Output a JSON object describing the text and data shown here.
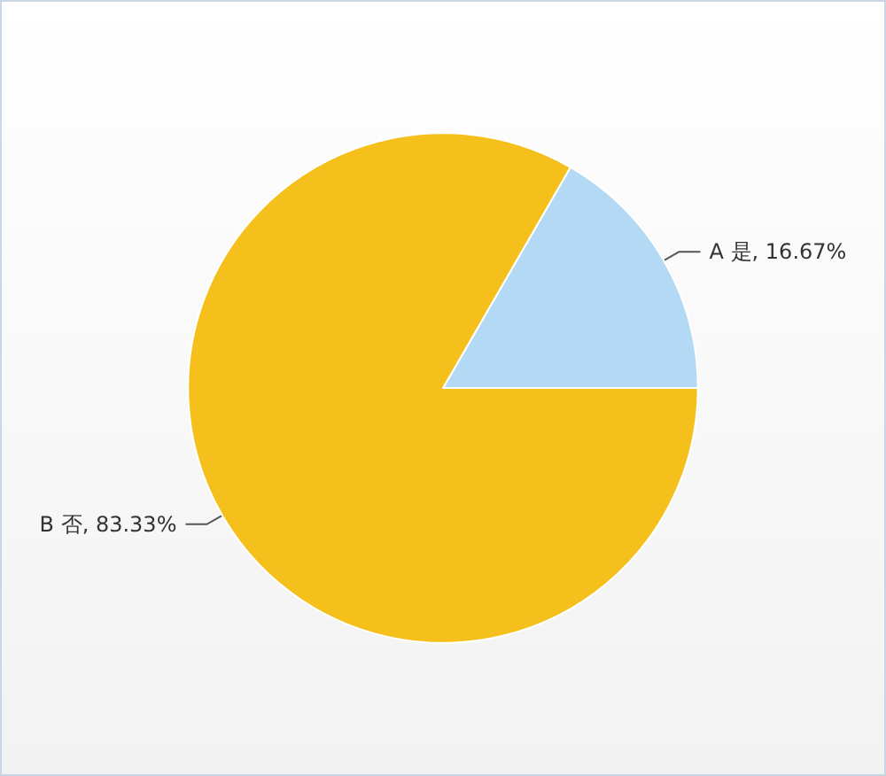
{
  "chart_data": {
    "type": "pie",
    "categories": [
      "A 是, 16.67%",
      "B 否, 83.33%"
    ],
    "values": [
      16.67,
      83.33
    ],
    "colors": [
      "#b3d9f5",
      "#f5c01c"
    ]
  }
}
